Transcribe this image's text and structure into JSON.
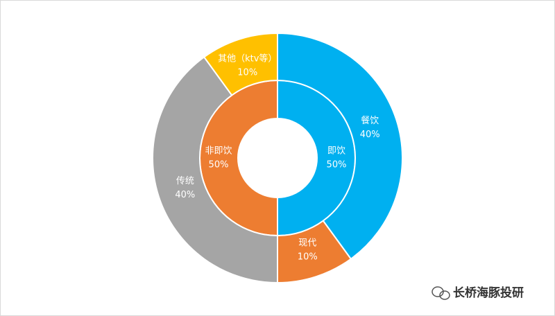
{
  "chart_data": {
    "type": "donut",
    "rings": [
      {
        "categories": [
          "即饮",
          "非即饮"
        ],
        "values": [
          50,
          50
        ],
        "value_labels": [
          "50%",
          "50%"
        ],
        "colors": [
          "#00B0F0",
          "#ED7D31"
        ]
      },
      {
        "categories": [
          "餐饮",
          "现代",
          "传统",
          "其他（ktv等）"
        ],
        "values": [
          40,
          10,
          40,
          10
        ],
        "value_labels": [
          "40%",
          "10%",
          "40%",
          "10%"
        ],
        "colors": [
          "#00B0F0",
          "#ED7D31",
          "#A5A5A5",
          "#FFC000"
        ]
      }
    ]
  },
  "watermark": "长桥海豚投研"
}
